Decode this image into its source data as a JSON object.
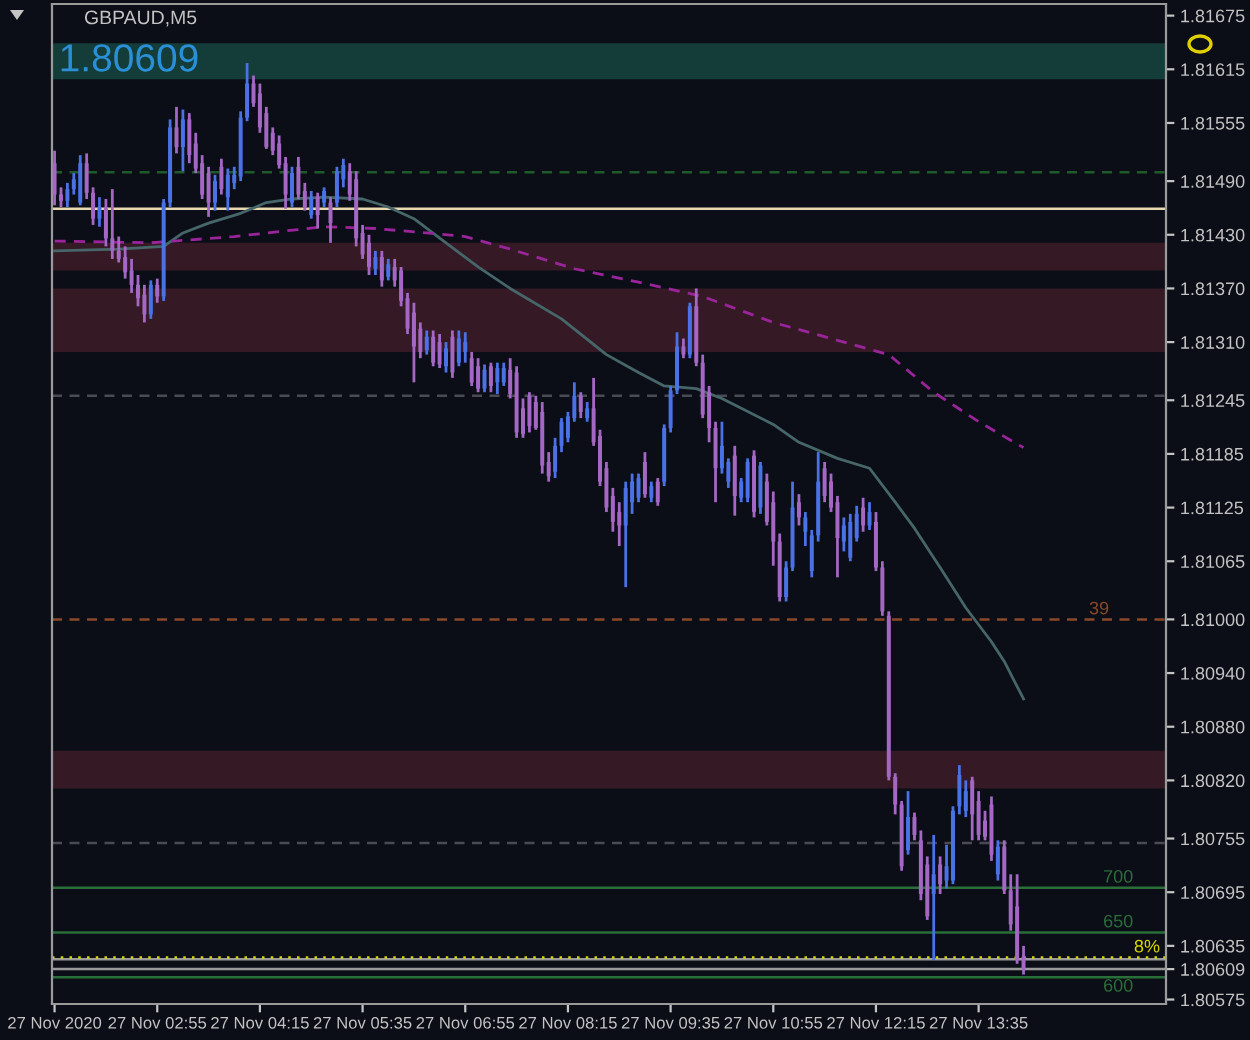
{
  "chart_data": {
    "type": "candlestick",
    "title": "GBPAUD,M5",
    "x": [
      "2020-11-27T01:35",
      "2020-11-27T01:40",
      "2020-11-27T01:45",
      "2020-11-27T01:50",
      "2020-11-27T01:55",
      "2020-11-27T02:00",
      "2020-11-27T02:05",
      "2020-11-27T02:10",
      "2020-11-27T02:15",
      "2020-11-27T02:20",
      "2020-11-27T02:25",
      "2020-11-27T02:30",
      "2020-11-27T02:35",
      "2020-11-27T02:40",
      "2020-11-27T02:45",
      "2020-11-27T02:50",
      "2020-11-27T02:55",
      "2020-11-27T03:00",
      "2020-11-27T03:05",
      "2020-11-27T03:10",
      "2020-11-27T03:15",
      "2020-11-27T03:20",
      "2020-11-27T03:25",
      "2020-11-27T03:30",
      "2020-11-27T03:35",
      "2020-11-27T03:40",
      "2020-11-27T03:45",
      "2020-11-27T03:50",
      "2020-11-27T03:55",
      "2020-11-27T04:00",
      "2020-11-27T04:05",
      "2020-11-27T04:10",
      "2020-11-27T04:15",
      "2020-11-27T04:20",
      "2020-11-27T04:25",
      "2020-11-27T04:30",
      "2020-11-27T04:35",
      "2020-11-27T04:40",
      "2020-11-27T04:45",
      "2020-11-27T04:50",
      "2020-11-27T04:55",
      "2020-11-27T05:00",
      "2020-11-27T05:05",
      "2020-11-27T05:10",
      "2020-11-27T05:15",
      "2020-11-27T05:20",
      "2020-11-27T05:25",
      "2020-11-27T05:30",
      "2020-11-27T05:35",
      "2020-11-27T05:40",
      "2020-11-27T05:45",
      "2020-11-27T05:50",
      "2020-11-27T05:55",
      "2020-11-27T06:00",
      "2020-11-27T06:05",
      "2020-11-27T06:10",
      "2020-11-27T06:15",
      "2020-11-27T06:20",
      "2020-11-27T06:25",
      "2020-11-27T06:30",
      "2020-11-27T06:35",
      "2020-11-27T06:40",
      "2020-11-27T06:45",
      "2020-11-27T06:50",
      "2020-11-27T06:55",
      "2020-11-27T07:00",
      "2020-11-27T07:05",
      "2020-11-27T07:10",
      "2020-11-27T07:15",
      "2020-11-27T07:20",
      "2020-11-27T07:25",
      "2020-11-27T07:30",
      "2020-11-27T07:35",
      "2020-11-27T07:40",
      "2020-11-27T07:45",
      "2020-11-27T07:50",
      "2020-11-27T07:55",
      "2020-11-27T08:00",
      "2020-11-27T08:05",
      "2020-11-27T08:10",
      "2020-11-27T08:15",
      "2020-11-27T08:20",
      "2020-11-27T08:25",
      "2020-11-27T08:30",
      "2020-11-27T08:35",
      "2020-11-27T08:40",
      "2020-11-27T08:45",
      "2020-11-27T08:50",
      "2020-11-27T08:55",
      "2020-11-27T09:00",
      "2020-11-27T09:05",
      "2020-11-27T09:10",
      "2020-11-27T09:15",
      "2020-11-27T09:20",
      "2020-11-27T09:25",
      "2020-11-27T09:30",
      "2020-11-27T09:35",
      "2020-11-27T09:40",
      "2020-11-27T09:45",
      "2020-11-27T09:50",
      "2020-11-27T09:55",
      "2020-11-27T10:00",
      "2020-11-27T10:05",
      "2020-11-27T10:10",
      "2020-11-27T10:15",
      "2020-11-27T10:20",
      "2020-11-27T10:25",
      "2020-11-27T10:30",
      "2020-11-27T10:35",
      "2020-11-27T10:40",
      "2020-11-27T10:45",
      "2020-11-27T10:50",
      "2020-11-27T10:55",
      "2020-11-27T11:00",
      "2020-11-27T11:05",
      "2020-11-27T11:10",
      "2020-11-27T11:15",
      "2020-11-27T11:20",
      "2020-11-27T11:25",
      "2020-11-27T11:30",
      "2020-11-27T11:35",
      "2020-11-27T11:40",
      "2020-11-27T11:45",
      "2020-11-27T11:50",
      "2020-11-27T11:55",
      "2020-11-27T12:00",
      "2020-11-27T12:05",
      "2020-11-27T12:10",
      "2020-11-27T12:15",
      "2020-11-27T12:20",
      "2020-11-27T12:25",
      "2020-11-27T12:30",
      "2020-11-27T12:35",
      "2020-11-27T12:40",
      "2020-11-27T12:45",
      "2020-11-27T12:50",
      "2020-11-27T12:55",
      "2020-11-27T13:00",
      "2020-11-27T13:05",
      "2020-11-27T13:10",
      "2020-11-27T13:15",
      "2020-11-27T13:20",
      "2020-11-27T13:25",
      "2020-11-27T13:30",
      "2020-11-27T13:35",
      "2020-11-27T13:40",
      "2020-11-27T13:45",
      "2020-11-27T13:50",
      "2020-11-27T13:55",
      "2020-11-27T14:00",
      "2020-11-27T14:05",
      "2020-11-27T14:10"
    ],
    "ohlc": [
      [
        1.8151,
        1.81524,
        1.81463,
        1.81475
      ],
      [
        1.81475,
        1.81483,
        1.81461,
        1.81468
      ],
      [
        1.81468,
        1.81488,
        1.81461,
        1.81481
      ],
      [
        1.81481,
        1.81499,
        1.81475,
        1.81492
      ],
      [
        1.81466,
        1.81519,
        1.81463,
        1.8151
      ],
      [
        1.8151,
        1.81521,
        1.8147,
        1.81477
      ],
      [
        1.81477,
        1.81483,
        1.81441,
        1.81448
      ],
      [
        1.81448,
        1.81472,
        1.81439,
        1.81461
      ],
      [
        1.81461,
        1.8147,
        1.81417,
        1.81426
      ],
      [
        1.81426,
        1.81481,
        1.81403,
        1.81412
      ],
      [
        1.81412,
        1.81428,
        1.81399,
        1.81403
      ],
      [
        1.81405,
        1.81417,
        1.81381,
        1.81388
      ],
      [
        1.8139,
        1.81403,
        1.81365,
        1.81374
      ],
      [
        1.81374,
        1.81385,
        1.8135,
        1.81359
      ],
      [
        1.81363,
        1.81374,
        1.81332,
        1.81341
      ],
      [
        1.81341,
        1.81379,
        1.81336,
        1.81374
      ],
      [
        1.81374,
        1.81381,
        1.81354,
        1.81361
      ],
      [
        1.81361,
        1.8147,
        1.81356,
        1.81466
      ],
      [
        1.81466,
        1.81559,
        1.81461,
        1.8155
      ],
      [
        1.8155,
        1.81573,
        1.81521,
        1.81528
      ],
      [
        1.81528,
        1.8157,
        1.81501,
        1.81559
      ],
      [
        1.81559,
        1.81566,
        1.8151,
        1.81519
      ],
      [
        1.81532,
        1.81544,
        1.81499,
        1.81504
      ],
      [
        1.8151,
        1.81519,
        1.8147,
        1.81475
      ],
      [
        1.81499,
        1.81506,
        1.8145,
        1.81466
      ],
      [
        1.81466,
        1.81497,
        1.81457,
        1.8149
      ],
      [
        1.81506,
        1.81515,
        1.81475,
        1.81481
      ],
      [
        1.81472,
        1.81504,
        1.81457,
        1.81497
      ],
      [
        1.81488,
        1.81506,
        1.81481,
        1.81497
      ],
      [
        1.81495,
        1.81568,
        1.8149,
        1.81561
      ],
      [
        1.81561,
        1.81622,
        1.81557,
        1.81599
      ],
      [
        1.81599,
        1.81608,
        1.81573,
        1.81577
      ],
      [
        1.81588,
        1.81599,
        1.81544,
        1.8155
      ],
      [
        1.81566,
        1.81573,
        1.81526,
        1.81528
      ],
      [
        1.81544,
        1.8155,
        1.81519,
        1.81524
      ],
      [
        1.81532,
        1.81541,
        1.81504,
        1.81508
      ],
      [
        1.8151,
        1.81517,
        1.81459,
        1.81475
      ],
      [
        1.81466,
        1.81506,
        1.81461,
        1.81499
      ],
      [
        1.81506,
        1.81517,
        1.8147,
        1.81475
      ],
      [
        1.81479,
        1.81488,
        1.81457,
        1.81461
      ],
      [
        1.81452,
        1.81479,
        1.81448,
        1.81472
      ],
      [
        1.81472,
        1.81477,
        1.81437,
        1.81452
      ],
      [
        1.81466,
        1.81483,
        1.81461,
        1.81479
      ],
      [
        1.81466,
        1.81472,
        1.81421,
        1.81443
      ],
      [
        1.81466,
        1.81506,
        1.81461,
        1.81501
      ],
      [
        1.81492,
        1.81515,
        1.81483,
        1.81508
      ],
      [
        1.81501,
        1.8151,
        1.81468,
        1.81475
      ],
      [
        1.81492,
        1.81501,
        1.81417,
        1.81426
      ],
      [
        1.81432,
        1.81441,
        1.81403,
        1.81408
      ],
      [
        1.81421,
        1.8143,
        1.81385,
        1.81394
      ],
      [
        1.81392,
        1.81412,
        1.81385,
        1.81405
      ],
      [
        1.81405,
        1.81412,
        1.81372,
        1.81379
      ],
      [
        1.81383,
        1.81403,
        1.81379,
        1.81397
      ],
      [
        1.81394,
        1.81403,
        1.81372,
        1.81379
      ],
      [
        1.8139,
        1.81394,
        1.8135,
        1.81356
      ],
      [
        1.81359,
        1.81365,
        1.81319,
        1.81325
      ],
      [
        1.81343,
        1.81354,
        1.81265,
        1.81305
      ],
      [
        1.81325,
        1.81332,
        1.81292,
        1.81299
      ],
      [
        1.81301,
        1.81323,
        1.81296,
        1.81316
      ],
      [
        1.81316,
        1.81323,
        1.81283,
        1.81287
      ],
      [
        1.8131,
        1.81319,
        1.81281,
        1.81285
      ],
      [
        1.81283,
        1.8131,
        1.81276,
        1.81303
      ],
      [
        1.81316,
        1.81323,
        1.8127,
        1.81276
      ],
      [
        1.81287,
        1.81323,
        1.81283,
        1.81314
      ],
      [
        1.81299,
        1.81321,
        1.81287,
        1.8131
      ],
      [
        1.81292,
        1.81299,
        1.81261,
        1.81265
      ],
      [
        1.81283,
        1.81292,
        1.81254,
        1.81258
      ],
      [
        1.81258,
        1.81285,
        1.81254,
        1.81279
      ],
      [
        1.81283,
        1.81287,
        1.81254,
        1.81261
      ],
      [
        1.81265,
        1.81287,
        1.81252,
        1.81281
      ],
      [
        1.81265,
        1.81287,
        1.81261,
        1.81281
      ],
      [
        1.81279,
        1.81292,
        1.81247,
        1.81252
      ],
      [
        1.81276,
        1.81283,
        1.81203,
        1.81209
      ],
      [
        1.81236,
        1.81247,
        1.81203,
        1.81207
      ],
      [
        1.8125,
        1.81254,
        1.81209,
        1.81216
      ],
      [
        1.81243,
        1.8125,
        1.81212,
        1.81214
      ],
      [
        1.81232,
        1.81243,
        1.81163,
        1.81172
      ],
      [
        1.81176,
        1.81187,
        1.81154,
        1.8116
      ],
      [
        1.81165,
        1.81203,
        1.81158,
        1.81194
      ],
      [
        1.81194,
        1.81225,
        1.81187,
        1.81221
      ],
      [
        1.81203,
        1.81232,
        1.81198,
        1.81227
      ],
      [
        1.81225,
        1.81265,
        1.81221,
        1.8125
      ],
      [
        1.8125,
        1.81254,
        1.81225,
        1.81232
      ],
      [
        1.81225,
        1.81243,
        1.81221,
        1.81236
      ],
      [
        1.81236,
        1.8127,
        1.81194,
        1.81198
      ],
      [
        1.81205,
        1.81212,
        1.81149,
        1.81154
      ],
      [
        1.81169,
        1.81176,
        1.8112,
        1.81125
      ],
      [
        1.81138,
        1.81147,
        1.81098,
        1.81109
      ],
      [
        1.8112,
        1.81131,
        1.81082,
        1.81105
      ],
      [
        1.81105,
        1.81154,
        1.81036,
        1.81147
      ],
      [
        1.81131,
        1.81163,
        1.81118,
        1.81154
      ],
      [
        1.81136,
        1.81163,
        1.81131,
        1.81158
      ],
      [
        1.81176,
        1.81187,
        1.81136,
        1.8114
      ],
      [
        1.81136,
        1.81154,
        1.81131,
        1.81149
      ],
      [
        1.81154,
        1.81158,
        1.81127,
        1.81131
      ],
      [
        1.81154,
        1.81218,
        1.81149,
        1.81214
      ],
      [
        1.81214,
        1.81261,
        1.81209,
        1.81256
      ],
      [
        1.81256,
        1.81321,
        1.81252,
        1.81305
      ],
      [
        1.81305,
        1.81314,
        1.81292,
        1.81296
      ],
      [
        1.81296,
        1.81354,
        1.81292,
        1.8135
      ],
      [
        1.8135,
        1.8137,
        1.81283,
        1.81287
      ],
      [
        1.81287,
        1.81296,
        1.81225,
        1.81229
      ],
      [
        1.81254,
        1.81261,
        1.81198,
        1.81214
      ],
      [
        1.81214,
        1.81221,
        1.81131,
        1.81169
      ],
      [
        1.81169,
        1.81221,
        1.81163,
        1.81194
      ],
      [
        1.81154,
        1.8118,
        1.81147,
        1.81176
      ],
      [
        1.81183,
        1.81194,
        1.81116,
        1.81138
      ],
      [
        1.81136,
        1.81158,
        1.81131,
        1.81154
      ],
      [
        1.81136,
        1.8118,
        1.81131,
        1.81176
      ],
      [
        1.81183,
        1.81189,
        1.81114,
        1.8112
      ],
      [
        1.81125,
        1.81176,
        1.81118,
        1.81172
      ],
      [
        1.81154,
        1.81163,
        1.81105,
        1.81109
      ],
      [
        1.81131,
        1.81143,
        1.8106,
        1.81087
      ],
      [
        1.81087,
        1.81096,
        1.8102,
        1.81025
      ],
      [
        1.81025,
        1.81065,
        1.8102,
        1.81058
      ],
      [
        1.81058,
        1.81154,
        1.81054,
        1.81125
      ],
      [
        1.81131,
        1.8114,
        1.81105,
        1.81114
      ],
      [
        1.81098,
        1.8112,
        1.81082,
        1.81114
      ],
      [
        1.81054,
        1.811,
        1.81047,
        1.81094
      ],
      [
        1.81094,
        1.81187,
        1.81087,
        1.81154
      ],
      [
        1.81169,
        1.81176,
        1.81131,
        1.81138
      ],
      [
        1.81154,
        1.81163,
        1.8112,
        1.81125
      ],
      [
        1.81131,
        1.81138,
        1.81047,
        1.81091
      ],
      [
        1.81087,
        1.81114,
        1.81076,
        1.81105
      ],
      [
        1.81069,
        1.81118,
        1.81065,
        1.81109
      ],
      [
        1.81091,
        1.81127,
        1.81087,
        1.81118
      ],
      [
        1.81125,
        1.81136,
        1.81098,
        1.81105
      ],
      [
        1.81105,
        1.81131,
        1.811,
        1.8112
      ],
      [
        1.81109,
        1.8112,
        1.81054,
        1.81058
      ],
      [
        1.81058,
        1.81065,
        1.81004,
        1.81009
      ],
      [
        1.81004,
        1.81009,
        1.8082,
        1.80824
      ],
      [
        1.80824,
        1.80828,
        1.80782,
        1.80793
      ],
      [
        1.80793,
        1.80797,
        1.80719,
        1.80724
      ],
      [
        1.80742,
        1.80808,
        1.80737,
        1.80779
      ],
      [
        1.80779,
        1.80784,
        1.80753,
        1.80759
      ],
      [
        1.80753,
        1.80764,
        1.80686,
        1.80693
      ],
      [
        1.80726,
        1.80735,
        1.80664,
        1.80668
      ],
      [
        1.80693,
        1.80759,
        1.80619,
        1.80715
      ],
      [
        1.80726,
        1.80735,
        1.80693,
        1.80704
      ],
      [
        1.80708,
        1.80748,
        1.80699,
        1.80724
      ],
      [
        1.80708,
        1.80791,
        1.80704,
        1.80786
      ],
      [
        1.80791,
        1.80837,
        1.80782,
        1.80826
      ],
      [
        1.80786,
        1.8082,
        1.80779,
        1.80808
      ],
      [
        1.8082,
        1.80824,
        1.80753,
        1.80782
      ],
      [
        1.80797,
        1.80808,
        1.80753,
        1.80759
      ],
      [
        1.80775,
        1.80786,
        1.80753,
        1.80757
      ],
      [
        1.80793,
        1.80802,
        1.8073,
        1.80737
      ],
      [
        1.80715,
        1.80753,
        1.80708,
        1.80746
      ],
      [
        1.80746,
        1.80753,
        1.80693,
        1.80697
      ],
      [
        1.80697,
        1.80715,
        1.80652,
        1.80659
      ],
      [
        1.80679,
        1.80715,
        1.80615,
        1.80619
      ],
      [
        1.80623,
        1.80635,
        1.80603,
        1.80609
      ]
    ],
    "colors": [
      "#a468c4",
      "#a468c4",
      "#4a72e6",
      "#4a72e6",
      "#4a72e6",
      "#a468c4",
      "#a468c4",
      "#4a72e6",
      "#a468c4",
      "#a468c4",
      "#a468c4",
      "#a468c4",
      "#a468c4",
      "#a468c4",
      "#a468c4",
      "#4a72e6",
      "#a468c4",
      "#4a72e6",
      "#4a72e6",
      "#a468c4",
      "#4a72e6",
      "#a468c4",
      "#a468c4",
      "#a468c4",
      "#a468c4",
      "#4a72e6",
      "#a468c4",
      "#4a72e6",
      "#4a72e6",
      "#4a72e6",
      "#4a72e6",
      "#a468c4",
      "#a468c4",
      "#a468c4",
      "#a468c4",
      "#a468c4",
      "#a468c4",
      "#4a72e6",
      "#a468c4",
      "#a468c4",
      "#4a72e6",
      "#a468c4",
      "#4a72e6",
      "#a468c4",
      "#4a72e6",
      "#4a72e6",
      "#a468c4",
      "#a468c4",
      "#a468c4",
      "#a468c4",
      "#4a72e6",
      "#a468c4",
      "#4a72e6",
      "#a468c4",
      "#a468c4",
      "#a468c4",
      "#a468c4",
      "#a468c4",
      "#4a72e6",
      "#a468c4",
      "#a468c4",
      "#4a72e6",
      "#a468c4",
      "#4a72e6",
      "#4a72e6",
      "#a468c4",
      "#a468c4",
      "#4a72e6",
      "#a468c4",
      "#4a72e6",
      "#4a72e6",
      "#a468c4",
      "#a468c4",
      "#a468c4",
      "#a468c4",
      "#a468c4",
      "#a468c4",
      "#a468c4",
      "#4a72e6",
      "#4a72e6",
      "#4a72e6",
      "#4a72e6",
      "#a468c4",
      "#4a72e6",
      "#a468c4",
      "#a468c4",
      "#a468c4",
      "#a468c4",
      "#a468c4",
      "#4a72e6",
      "#4a72e6",
      "#4a72e6",
      "#a468c4",
      "#4a72e6",
      "#a468c4",
      "#4a72e6",
      "#4a72e6",
      "#4a72e6",
      "#a468c4",
      "#4a72e6",
      "#a468c4",
      "#a468c4",
      "#a468c4",
      "#a468c4",
      "#4a72e6",
      "#4a72e6",
      "#a468c4",
      "#4a72e6",
      "#4a72e6",
      "#a468c4",
      "#4a72e6",
      "#a468c4",
      "#a468c4",
      "#a468c4",
      "#4a72e6",
      "#4a72e6",
      "#a468c4",
      "#4a72e6",
      "#4a72e6",
      "#4a72e6",
      "#a468c4",
      "#a468c4",
      "#a468c4",
      "#4a72e6",
      "#4a72e6",
      "#4a72e6",
      "#a468c4",
      "#4a72e6",
      "#a468c4",
      "#a468c4",
      "#a468c4",
      "#a468c4",
      "#a468c4",
      "#4a72e6",
      "#a468c4",
      "#a468c4",
      "#a468c4",
      "#4a72e6",
      "#a468c4",
      "#4a72e6",
      "#4a72e6",
      "#4a72e6",
      "#4a72e6",
      "#a468c4",
      "#a468c4",
      "#a468c4",
      "#a468c4",
      "#4a72e6",
      "#a468c4",
      "#a468c4",
      "#a468c4",
      "#a468c4"
    ],
    "series": [
      {
        "type": "line",
        "color": "#46666a",
        "x": [
          "2020-11-27T01:35",
          "2020-11-27T02:25",
          "2020-11-27T03:00",
          "2020-11-27T03:15",
          "2020-11-27T03:35",
          "2020-11-27T04:00",
          "2020-11-27T04:20",
          "2020-11-27T04:40",
          "2020-11-27T05:05",
          "2020-11-27T05:35",
          "2020-11-27T05:55",
          "2020-11-27T06:15",
          "2020-11-27T06:40",
          "2020-11-27T07:05",
          "2020-11-27T07:30",
          "2020-11-27T08:10",
          "2020-11-27T08:45",
          "2020-11-27T09:10",
          "2020-11-27T09:30",
          "2020-11-27T09:55",
          "2020-11-27T10:15",
          "2020-11-27T10:55",
          "2020-11-27T11:15",
          "2020-11-27T11:45",
          "2020-11-27T12:10",
          "2020-11-27T12:30",
          "2020-11-27T12:45",
          "2020-11-27T13:05",
          "2020-11-27T13:25",
          "2020-11-27T13:45",
          "2020-11-27T13:55",
          "2020-11-27T14:10"
        ],
        "values": [
          1.81412,
          1.81414,
          1.81417,
          1.81432,
          1.81443,
          1.81454,
          1.81466,
          1.8147,
          1.81472,
          1.8147,
          1.81461,
          1.81448,
          1.81421,
          1.81394,
          1.8137,
          1.81336,
          1.81296,
          1.81276,
          1.81261,
          1.81258,
          1.81247,
          1.81218,
          1.81198,
          1.8118,
          1.81169,
          1.81131,
          1.81102,
          1.81058,
          1.81013,
          1.80975,
          1.80953,
          1.80911
        ]
      },
      {
        "type": "line",
        "color": "#9a249a",
        "line_style": "dashed",
        "x": [
          "2020-11-27T01:35",
          "2020-11-27T02:50",
          "2020-11-27T03:55",
          "2020-11-27T05:05",
          "2020-11-27T05:45",
          "2020-11-27T06:25",
          "2020-11-27T06:55",
          "2020-11-27T07:30",
          "2020-11-27T08:20",
          "2020-11-27T09:10",
          "2020-11-27T10:00",
          "2020-11-27T10:55",
          "2020-11-27T11:45",
          "2020-11-27T12:25",
          "2020-11-27T13:00",
          "2020-11-27T13:35",
          "2020-11-27T14:10"
        ],
        "values": [
          1.81423,
          1.81421,
          1.81428,
          1.81439,
          1.81437,
          1.81432,
          1.81428,
          1.81414,
          1.81392,
          1.81377,
          1.81361,
          1.81332,
          1.81312,
          1.81296,
          1.81254,
          1.81221,
          1.81192
        ]
      }
    ],
    "xlim": [
      "2020-11-27T01:33",
      "2020-11-27T16:01"
    ],
    "ylim": [
      1.8057,
      1.81688
    ],
    "xticks": [
      {
        "value": "2020-11-27T01:35",
        "label": "27 Nov 2020"
      },
      {
        "value": "2020-11-27T02:55",
        "label": "27 Nov 02:55"
      },
      {
        "value": "2020-11-27T04:15",
        "label": "27 Nov 04:15"
      },
      {
        "value": "2020-11-27T05:35",
        "label": "27 Nov 05:35"
      },
      {
        "value": "2020-11-27T06:55",
        "label": "27 Nov 06:55"
      },
      {
        "value": "2020-11-27T08:15",
        "label": "27 Nov 08:15"
      },
      {
        "value": "2020-11-27T09:35",
        "label": "27 Nov 09:35"
      },
      {
        "value": "2020-11-27T10:55",
        "label": "27 Nov 10:55"
      },
      {
        "value": "2020-11-27T12:15",
        "label": "27 Nov 12:15"
      },
      {
        "value": "2020-11-27T13:35",
        "label": "27 Nov 13:35"
      }
    ],
    "yticks": [
      {
        "value": 1.81675,
        "label": "1.81675"
      },
      {
        "value": 1.81615,
        "label": "1.81615"
      },
      {
        "value": 1.81555,
        "label": "1.81555"
      },
      {
        "value": 1.8149,
        "label": "1.81490"
      },
      {
        "value": 1.8143,
        "label": "1.81430"
      },
      {
        "value": 1.8137,
        "label": "1.81370"
      },
      {
        "value": 1.8131,
        "label": "1.81310"
      },
      {
        "value": 1.81245,
        "label": "1.81245"
      },
      {
        "value": 1.81185,
        "label": "1.81185"
      },
      {
        "value": 1.81125,
        "label": "1.81125"
      },
      {
        "value": 1.81065,
        "label": "1.81065"
      },
      {
        "value": 1.81,
        "label": "1.81000"
      },
      {
        "value": 1.8094,
        "label": "1.80940"
      },
      {
        "value": 1.8088,
        "label": "1.80880"
      },
      {
        "value": 1.8082,
        "label": "1.80820"
      },
      {
        "value": 1.80755,
        "label": "1.80755"
      },
      {
        "value": 1.80695,
        "label": "1.80695"
      },
      {
        "value": 1.80635,
        "label": "1.80635"
      },
      {
        "value": 1.80609,
        "label": "1.80609"
      },
      {
        "value": 1.80575,
        "label": "1.80575"
      }
    ],
    "bands": [
      {
        "axis": "y",
        "from": 1.81604,
        "to": 1.81644,
        "label": "1.80609",
        "color": "#143c38"
      },
      {
        "axis": "y",
        "from": 1.8139,
        "to": 1.81421,
        "color": "#351a25"
      },
      {
        "axis": "y",
        "from": 1.81299,
        "to": 1.8137,
        "color": "#351a25"
      },
      {
        "axis": "y",
        "from": 1.80811,
        "to": 1.80853,
        "color": "#351a25"
      }
    ],
    "ref_lines": [
      {
        "axis": "y",
        "value": 1.815,
        "color": "#1e5a2a",
        "line_style": "dashed"
      },
      {
        "axis": "y",
        "value": 1.81459,
        "color": "#e8d8b0"
      },
      {
        "axis": "y",
        "value": 1.8125,
        "color": "#4a4a55",
        "line_style": "dashed"
      },
      {
        "axis": "y",
        "value": 1.81,
        "color": "#8a4a2a",
        "line_style": "dashed"
      },
      {
        "axis": "y",
        "value": 1.8075,
        "color": "#4a4a55",
        "line_style": "dashed"
      },
      {
        "axis": "y",
        "value": 1.807,
        "color": "#2a6e3a"
      },
      {
        "axis": "y",
        "value": 1.8065,
        "color": "#2a6e3a"
      },
      {
        "axis": "y",
        "value": 1.806,
        "color": "#2a6e3a"
      },
      {
        "axis": "y",
        "value": 1.8062,
        "color": "#9a9a9a"
      },
      {
        "axis": "y",
        "value": 1.80609,
        "color": "#9a9a9a"
      },
      {
        "axis": "y",
        "value": 1.80622,
        "color": "#d8d800",
        "line_style": "dotted"
      }
    ],
    "annotations": [
      {
        "text": "39",
        "x": "2020-11-27T15:01",
        "y": 1.81
      },
      {
        "text": "700",
        "x": "2020-11-27T15:12",
        "y": 1.807
      },
      {
        "text": "650",
        "x": "2020-11-27T15:12",
        "y": 1.8065
      },
      {
        "text": "600",
        "x": "2020-11-27T15:12",
        "y": 1.806
      },
      {
        "text": "8%",
        "x": "2020-11-27T15:36",
        "y": 1.80622
      }
    ]
  }
}
